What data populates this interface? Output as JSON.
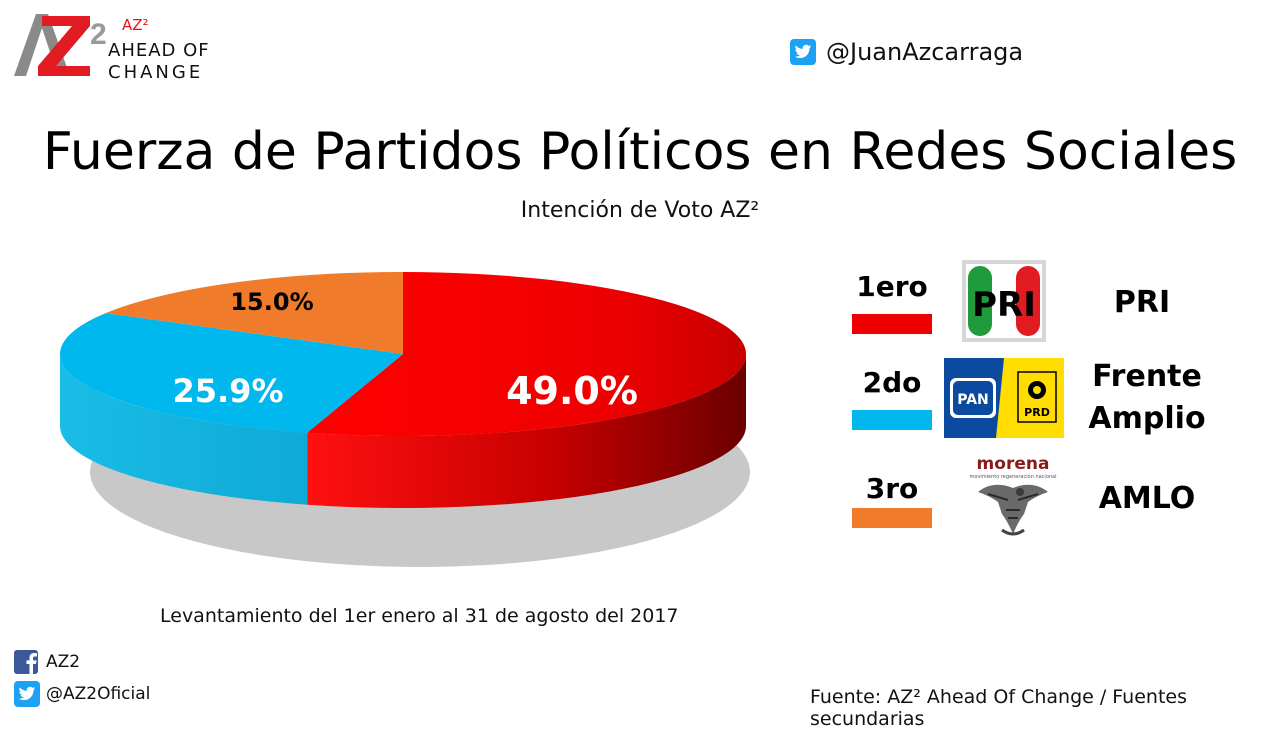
{
  "header": {
    "logo": {
      "mark_text": "AZ2",
      "sup": "AZ²",
      "line1": "AHEAD OF",
      "line2": "CHANGE"
    },
    "twitter_handle": "@JuanAzcarraga"
  },
  "chart_data": {
    "type": "pie",
    "title": "Fuerza de Partidos Políticos en Redes Sociales",
    "subtitle": "Intención de Voto AZ²",
    "slices": [
      {
        "label": "PRI",
        "value": 49.0,
        "display": "49.0%",
        "color": "#ee0000"
      },
      {
        "label": "Frente Amplio",
        "value": 25.9,
        "display": "25.9%",
        "color": "#00b8ee"
      },
      {
        "label": "AMLO",
        "value": 15.0,
        "display": "15.0%",
        "color": "#f07b2a"
      }
    ],
    "note": "Levantamiento del 1er enero al 31 de agosto del 2017"
  },
  "legend": [
    {
      "rank": "1ero",
      "color": "#ee0000",
      "name_lines": [
        "PRI"
      ],
      "logo": "pri-logo"
    },
    {
      "rank": "2do",
      "color": "#00b8ee",
      "name_lines": [
        "Frente",
        "Amplio"
      ],
      "logo": "pan-prd-logo",
      "pan_text": "PAN",
      "prd_text": "PRD"
    },
    {
      "rank": "3ro",
      "color": "#f07b2a",
      "name_lines": [
        "AMLO"
      ],
      "logo": "morena-logo",
      "morena_text": "morena",
      "morena_sub": "movimiento regeneración nacional"
    }
  ],
  "footer": {
    "facebook": "AZ2",
    "twitter": "@AZ2Oficial",
    "source": "Fuente: AZ² Ahead Of Change / Fuentes secundarias"
  },
  "icons": [
    "twitter-icon",
    "facebook-icon"
  ]
}
